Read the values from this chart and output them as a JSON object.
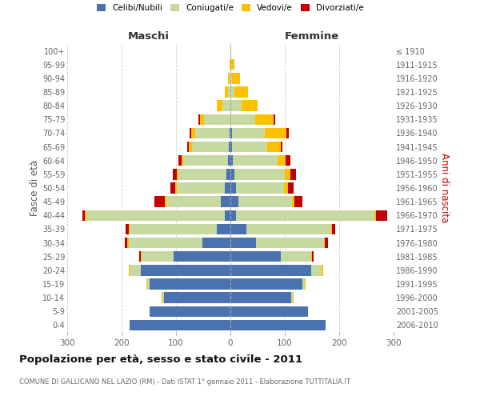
{
  "age_groups": [
    "0-4",
    "5-9",
    "10-14",
    "15-19",
    "20-24",
    "25-29",
    "30-34",
    "35-39",
    "40-44",
    "45-49",
    "50-54",
    "55-59",
    "60-64",
    "65-69",
    "70-74",
    "75-79",
    "80-84",
    "85-89",
    "90-94",
    "95-99",
    "100+"
  ],
  "birth_years": [
    "2006-2010",
    "2001-2005",
    "1996-2000",
    "1991-1995",
    "1986-1990",
    "1981-1985",
    "1976-1980",
    "1971-1975",
    "1966-1970",
    "1961-1965",
    "1956-1960",
    "1951-1955",
    "1946-1950",
    "1941-1945",
    "1936-1940",
    "1931-1935",
    "1926-1930",
    "1921-1925",
    "1916-1920",
    "1911-1915",
    "≤ 1910"
  ],
  "males": {
    "celibi": [
      185,
      148,
      122,
      148,
      165,
      105,
      52,
      25,
      10,
      18,
      10,
      7,
      5,
      3,
      2,
      0,
      0,
      0,
      0,
      0,
      0
    ],
    "coniugati": [
      0,
      0,
      3,
      5,
      20,
      58,
      135,
      160,
      255,
      100,
      88,
      88,
      82,
      68,
      62,
      48,
      15,
      5,
      2,
      0,
      0
    ],
    "vedovi": [
      0,
      0,
      1,
      1,
      2,
      2,
      2,
      2,
      2,
      2,
      3,
      3,
      3,
      5,
      8,
      8,
      10,
      5,
      3,
      2,
      0
    ],
    "divorziati": [
      0,
      0,
      0,
      0,
      0,
      2,
      5,
      5,
      5,
      20,
      10,
      8,
      5,
      3,
      3,
      3,
      0,
      0,
      0,
      0,
      0
    ]
  },
  "females": {
    "nubili": [
      175,
      143,
      112,
      132,
      148,
      93,
      47,
      30,
      10,
      15,
      10,
      8,
      5,
      3,
      3,
      0,
      0,
      0,
      0,
      0,
      0
    ],
    "coniugate": [
      0,
      0,
      3,
      5,
      20,
      55,
      125,
      155,
      255,
      98,
      88,
      92,
      82,
      65,
      60,
      45,
      20,
      8,
      3,
      2,
      0
    ],
    "vedove": [
      0,
      0,
      1,
      1,
      2,
      2,
      2,
      2,
      3,
      5,
      8,
      10,
      15,
      25,
      40,
      35,
      30,
      25,
      15,
      5,
      1
    ],
    "divorziate": [
      0,
      0,
      0,
      0,
      0,
      3,
      5,
      5,
      20,
      15,
      10,
      10,
      8,
      3,
      5,
      3,
      0,
      0,
      0,
      0,
      0
    ]
  },
  "colors": {
    "celibi": "#4a72b0",
    "coniugati": "#c5d9a0",
    "vedovi": "#ffc000",
    "divorziati": "#c00000"
  },
  "xlim": 300,
  "title": "Popolazione per età, sesso e stato civile - 2011",
  "subtitle": "COMUNE DI GALLICANO NEL LAZIO (RM) - Dati ISTAT 1° gennaio 2011 - Elaborazione TUTTITALIA.IT",
  "ylabel_left": "Fasce di età",
  "ylabel_right": "Anni di nascita",
  "xlabel_left": "Maschi",
  "xlabel_right": "Femmine",
  "bg_color": "#ffffff",
  "grid_color": "#cccccc"
}
